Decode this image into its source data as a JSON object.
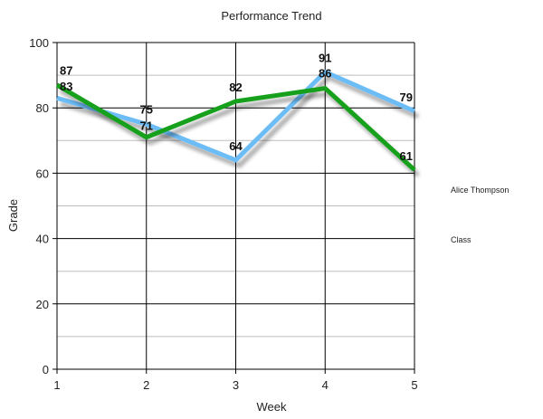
{
  "chart_data": {
    "type": "line",
    "title": "Performance Trend",
    "xlabel": "Week",
    "ylabel": "Grade",
    "x": [
      1,
      2,
      3,
      4,
      5
    ],
    "x_tick_labels": [
      "1",
      "2",
      "3",
      "4",
      "5"
    ],
    "ylim": [
      0,
      100
    ],
    "y_ticks": [
      0,
      20,
      40,
      60,
      80,
      100
    ],
    "y_tick_labels": [
      "0",
      "20",
      "40",
      "60",
      "80",
      "100"
    ],
    "grid": true,
    "legend_placement": "right",
    "series": [
      {
        "name": "Alice Thompson",
        "color": "#6cbcf5",
        "values": [
          83,
          75,
          64,
          91,
          79
        ],
        "data_labels": [
          "83",
          "75",
          "64",
          "91",
          "79"
        ]
      },
      {
        "name": "Class",
        "color": "#14a01e",
        "values": [
          87,
          71,
          82,
          86,
          61
        ],
        "data_labels": [
          "87",
          "71",
          "82",
          "86",
          "61"
        ]
      }
    ]
  }
}
